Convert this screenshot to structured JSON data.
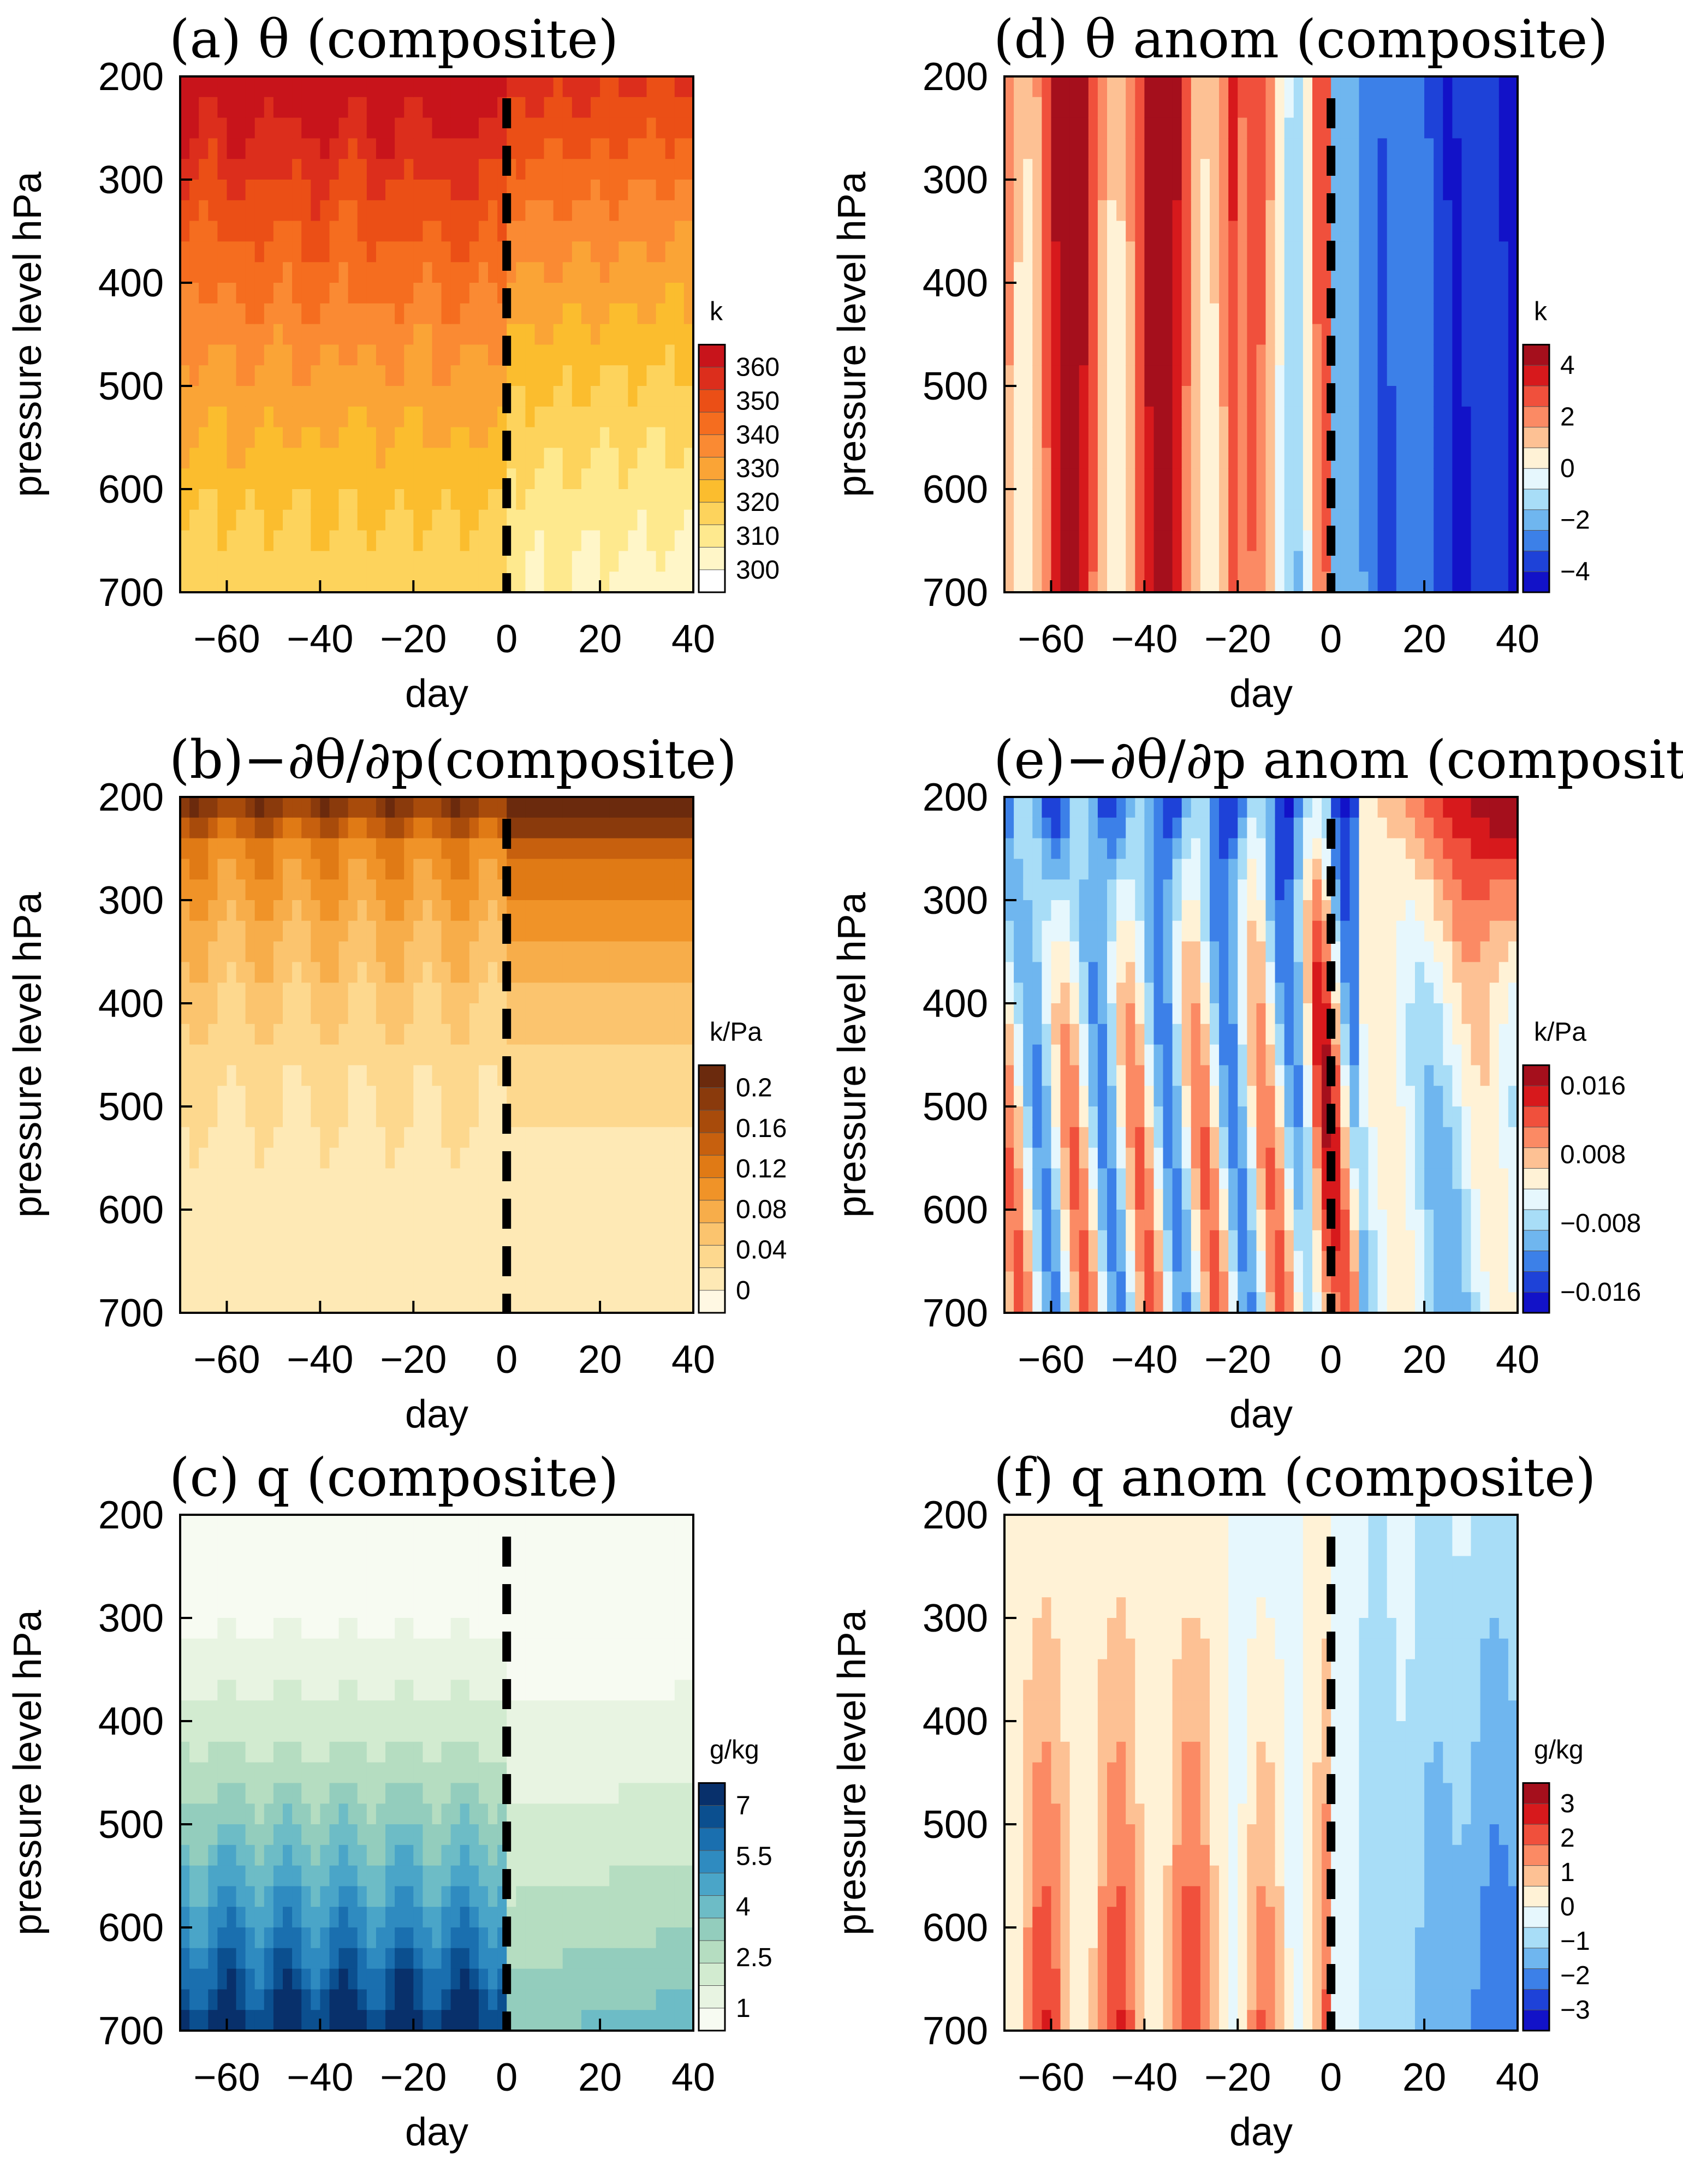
{
  "chart_data": [
    {
      "id": "a",
      "type": "heatmap",
      "title": "(a) θ (composite)",
      "xlabel": "day",
      "ylabel": "pressure level hPa",
      "xlim": [
        -70,
        40
      ],
      "ylim": [
        700,
        200
      ],
      "y_reversed": true,
      "xticks": [
        "−60",
        "−40",
        "−20",
        "0",
        "20",
        "40"
      ],
      "yticks": [
        "200",
        "300",
        "400",
        "500",
        "600",
        "700"
      ],
      "colorbar": {
        "unit": "k",
        "tick_labels": [
          "360",
          "350",
          "340",
          "330",
          "320",
          "310",
          "300"
        ],
        "colors": [
          "#c8141b",
          "#dc2e1c",
          "#eb4f16",
          "#f56d1f",
          "#fa8a33",
          "#faa436",
          "#fbbd2e",
          "#fdd35c",
          "#fee98e",
          "#fff6c8",
          "#ffffff"
        ]
      },
      "marker_day": 0,
      "field": {
        "kind": "theta"
      }
    },
    {
      "id": "b",
      "type": "heatmap",
      "title": "(b)−∂θ/∂p(composite)",
      "xlabel": "day",
      "ylabel": "pressure level hPa",
      "xlim": [
        -70,
        40
      ],
      "ylim": [
        700,
        200
      ],
      "y_reversed": true,
      "xticks": [
        "−60",
        "−40",
        "−20",
        "0",
        "20",
        "40"
      ],
      "yticks": [
        "200",
        "300",
        "400",
        "500",
        "600",
        "700"
      ],
      "colorbar": {
        "unit": "k/Pa",
        "tick_labels": [
          "0.2",
          "0.16",
          "0.12",
          "0.08",
          "0.04",
          "0"
        ],
        "colors": [
          "#6b2a0d",
          "#8a3a0c",
          "#a84b0b",
          "#c7600e",
          "#e07a15",
          "#f09328",
          "#f7ad4a",
          "#fbc46e",
          "#fdd88e",
          "#fee9b5",
          "#fff8e3"
        ]
      },
      "marker_day": 0,
      "field": {
        "kind": "stability"
      }
    },
    {
      "id": "c",
      "type": "heatmap",
      "title": "(c) q (composite)",
      "xlabel": "day",
      "ylabel": "pressure level hPa",
      "xlim": [
        -70,
        40
      ],
      "ylim": [
        700,
        200
      ],
      "y_reversed": true,
      "xticks": [
        "−60",
        "−40",
        "−20",
        "0",
        "20",
        "40"
      ],
      "yticks": [
        "200",
        "300",
        "400",
        "500",
        "600",
        "700"
      ],
      "colorbar": {
        "unit": "g/kg",
        "tick_labels": [
          "7",
          "5.5",
          "4",
          "2.5",
          "1"
        ],
        "colors": [
          "#08306b",
          "#0b4f8f",
          "#1a6faf",
          "#2f8bc0",
          "#4aa5c8",
          "#6dbcc6",
          "#93cdbd",
          "#b5ddc1",
          "#d2ebd0",
          "#e8f4e2",
          "#f7fbf2"
        ]
      },
      "marker_day": 0,
      "field": {
        "kind": "humidity"
      }
    },
    {
      "id": "d",
      "type": "heatmap",
      "title": "(d) θ anom (composite)",
      "xlabel": "day",
      "ylabel": "pressure level hPa",
      "xlim": [
        -70,
        40
      ],
      "ylim": [
        700,
        200
      ],
      "y_reversed": true,
      "xticks": [
        "−60",
        "−40",
        "−20",
        "0",
        "20",
        "40"
      ],
      "yticks": [
        "200",
        "300",
        "400",
        "500",
        "600",
        "700"
      ],
      "colorbar": {
        "unit": "k",
        "tick_labels": [
          "4",
          "2",
          "0",
          "−2",
          "−4"
        ],
        "colors": [
          "#a50f1c",
          "#d7191c",
          "#f0503c",
          "#fb8a64",
          "#fdc194",
          "#fff2d6",
          "#e6f7fd",
          "#a8ddf7",
          "#6fb6ef",
          "#3c80e8",
          "#1e42d8",
          "#1212c8"
        ]
      },
      "marker_day": 0,
      "field": {
        "kind": "theta_anom"
      }
    },
    {
      "id": "e",
      "type": "heatmap",
      "title": "(e)−∂θ/∂p anom (composite)",
      "xlabel": "day",
      "ylabel": "pressure level hPa",
      "xlim": [
        -70,
        40
      ],
      "ylim": [
        700,
        200
      ],
      "y_reversed": true,
      "xticks": [
        "−60",
        "−40",
        "−20",
        "0",
        "20",
        "40"
      ],
      "yticks": [
        "200",
        "300",
        "400",
        "500",
        "600",
        "700"
      ],
      "colorbar": {
        "unit": "k/Pa",
        "tick_labels": [
          "0.016",
          "0.008",
          "−0.008",
          "−0.016"
        ],
        "colors": [
          "#a50f1c",
          "#d7191c",
          "#f0503c",
          "#fb8a64",
          "#fdc194",
          "#fff2d6",
          "#e6f7fd",
          "#a8ddf7",
          "#6fb6ef",
          "#3c80e8",
          "#1e42d8",
          "#1212c8"
        ]
      },
      "marker_day": 0,
      "field": {
        "kind": "stab_anom"
      }
    },
    {
      "id": "f",
      "type": "heatmap",
      "title": "(f) q anom (composite)",
      "xlabel": "day",
      "ylabel": "pressure level hPa",
      "xlim": [
        -70,
        40
      ],
      "ylim": [
        700,
        200
      ],
      "y_reversed": true,
      "xticks": [
        "−60",
        "−40",
        "−20",
        "0",
        "20",
        "40"
      ],
      "yticks": [
        "200",
        "300",
        "400",
        "500",
        "600",
        "700"
      ],
      "colorbar": {
        "unit": "g/kg",
        "tick_labels": [
          "3",
          "2",
          "1",
          "0",
          "−1",
          "−2",
          "−3"
        ],
        "colors": [
          "#a50f1c",
          "#d7191c",
          "#f0503c",
          "#fb8a64",
          "#fdc194",
          "#fff2d6",
          "#e6f7fd",
          "#a8ddf7",
          "#6fb6ef",
          "#3c80e8",
          "#1e42d8",
          "#1212c8"
        ]
      },
      "marker_day": 0,
      "field": {
        "kind": "q_anom"
      }
    }
  ]
}
